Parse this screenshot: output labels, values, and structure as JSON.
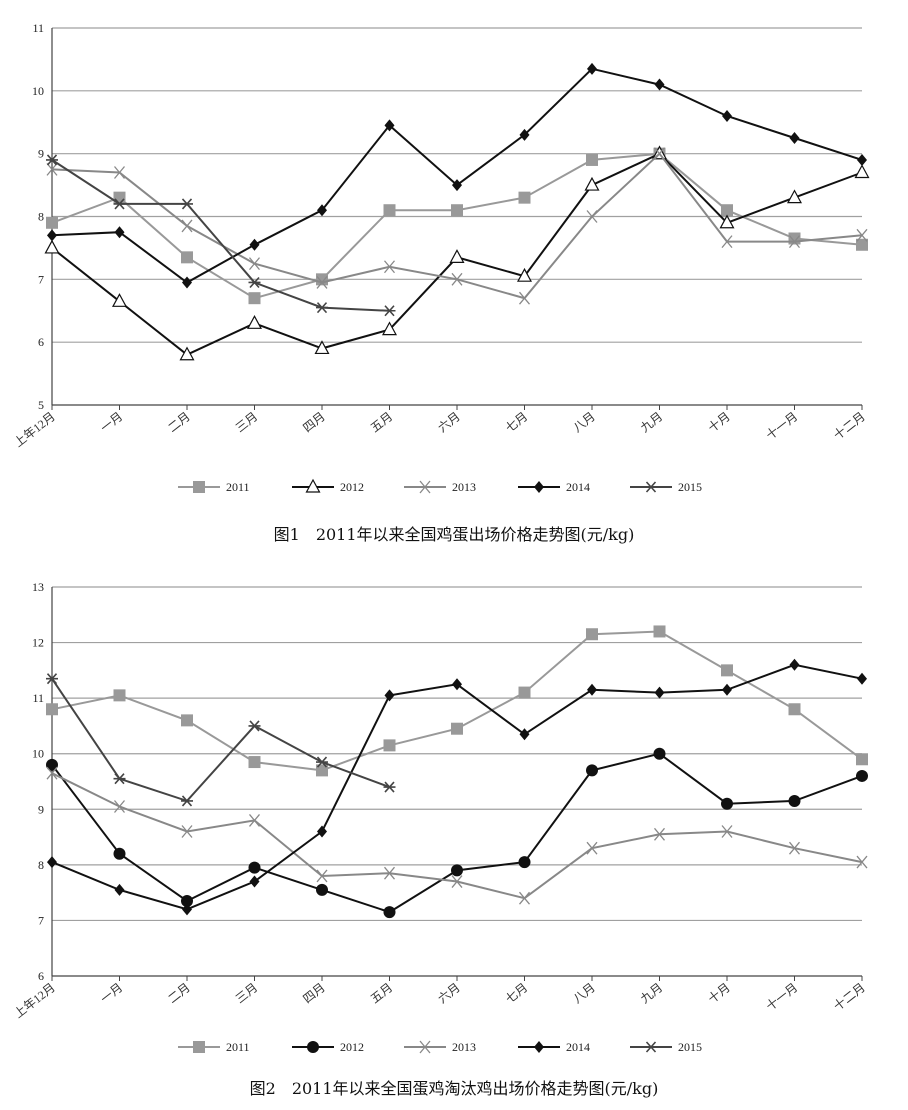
{
  "charts": [
    {
      "caption": "图1　2011年以来全国鸡蛋出场价格走势图(元/kg)",
      "chart_data": {
        "type": "line",
        "categories": [
          "上年12月",
          "一月",
          "二月",
          "三月",
          "四月",
          "五月",
          "六月",
          "七月",
          "八月",
          "九月",
          "十月",
          "十一月",
          "十二月"
        ],
        "ylim": [
          5,
          11
        ],
        "yticks": [
          "5",
          "6",
          "7",
          "8",
          "9",
          "10",
          "11"
        ],
        "grid": true,
        "legend": "bottom",
        "series": [
          {
            "name": "2011",
            "color": "#999999",
            "marker": "square",
            "values": [
              7.9,
              8.3,
              7.35,
              6.7,
              7.0,
              8.1,
              8.1,
              8.3,
              8.9,
              9.0,
              8.1,
              7.65,
              7.55
            ]
          },
          {
            "name": "2012",
            "color": "#111111",
            "marker": "triangle",
            "values": [
              7.5,
              6.65,
              5.8,
              6.3,
              5.9,
              6.2,
              7.35,
              7.05,
              8.5,
              9.0,
              7.9,
              8.3,
              8.7
            ]
          },
          {
            "name": "2013",
            "color": "#888888",
            "marker": "x",
            "values": [
              8.75,
              8.7,
              7.85,
              7.25,
              6.95,
              7.2,
              7.0,
              6.7,
              8.0,
              9.0,
              7.6,
              7.6,
              7.7
            ]
          },
          {
            "name": "2014",
            "color": "#111111",
            "marker": "diamond",
            "values": [
              7.7,
              7.75,
              6.95,
              7.55,
              8.1,
              9.45,
              8.5,
              9.3,
              10.35,
              10.1,
              9.6,
              9.25,
              8.9
            ]
          },
          {
            "name": "2015",
            "color": "#444444",
            "marker": "asterisk",
            "values": [
              8.9,
              8.2,
              8.2,
              6.95,
              6.55,
              6.5,
              null,
              null,
              null,
              null,
              null,
              null,
              null
            ]
          }
        ]
      }
    },
    {
      "caption": "图2　2011年以来全国蛋鸡淘汰鸡出场价格走势图(元/kg)",
      "chart_data": {
        "type": "line",
        "categories": [
          "上年12月",
          "一月",
          "二月",
          "三月",
          "四月",
          "五月",
          "六月",
          "七月",
          "八月",
          "九月",
          "十月",
          "十一月",
          "十二月"
        ],
        "ylim": [
          6,
          13
        ],
        "yticks": [
          "6",
          "7",
          "8",
          "9",
          "10",
          "11",
          "12",
          "13"
        ],
        "grid": true,
        "legend": "bottom",
        "series": [
          {
            "name": "2011",
            "color": "#999999",
            "marker": "square",
            "values": [
              10.8,
              11.05,
              10.6,
              9.85,
              9.7,
              10.15,
              10.45,
              11.1,
              12.15,
              12.2,
              11.5,
              10.8,
              9.9
            ]
          },
          {
            "name": "2012",
            "color": "#111111",
            "marker": "circle",
            "values": [
              9.8,
              8.2,
              7.35,
              7.95,
              7.55,
              7.15,
              7.9,
              8.05,
              9.7,
              10.0,
              9.1,
              9.15,
              9.6
            ]
          },
          {
            "name": "2013",
            "color": "#888888",
            "marker": "x",
            "values": [
              9.65,
              9.05,
              8.6,
              8.8,
              7.8,
              7.85,
              7.7,
              7.4,
              8.3,
              8.55,
              8.6,
              8.3,
              8.05
            ]
          },
          {
            "name": "2014",
            "color": "#111111",
            "marker": "diamond",
            "values": [
              8.05,
              7.55,
              7.2,
              7.7,
              8.6,
              11.05,
              11.25,
              10.35,
              11.15,
              11.1,
              11.15,
              11.6,
              11.35
            ]
          },
          {
            "name": "2015",
            "color": "#444444",
            "marker": "asterisk",
            "values": [
              11.35,
              9.55,
              9.15,
              10.5,
              9.85,
              9.4,
              null,
              null,
              null,
              null,
              null,
              null,
              null
            ]
          }
        ]
      }
    }
  ]
}
